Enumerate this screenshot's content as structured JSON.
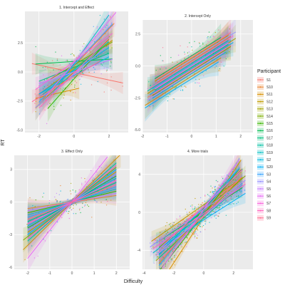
{
  "chart_data": {
    "type": "scatter",
    "x_label": "Difficulty",
    "y_label": "RT",
    "legend_title": "Participant",
    "legend_position": "right",
    "grid": true,
    "participants": [
      "S1",
      "S10",
      "S11",
      "S12",
      "S13",
      "S14",
      "S15",
      "S16",
      "S17",
      "S18",
      "S19",
      "S2",
      "S20",
      "S3",
      "S4",
      "S5",
      "S6",
      "S7",
      "S8",
      "S9"
    ],
    "colors": [
      "#F8766D",
      "#EA8331",
      "#D89000",
      "#C09B00",
      "#A3A500",
      "#7CAE00",
      "#39B600",
      "#00BB4E",
      "#00BF7D",
      "#00C1A3",
      "#00BFC4",
      "#00BAE0",
      "#00B0F6",
      "#35A2FF",
      "#9590FF",
      "#C77CFF",
      "#E76BF3",
      "#FA62DB",
      "#FF62BC",
      "#FF6C91"
    ],
    "panels": [
      {
        "title": "1. Intercept and Effect",
        "xlim": [
          -2.8,
          3.1
        ],
        "ylim": [
          -5.2,
          5.2
        ],
        "x_ticks": [
          -2,
          0,
          2
        ],
        "y_ticks": [
          -5.0,
          -2.5,
          0.0,
          2.5
        ],
        "y_tick_labels": [
          "-5.0",
          "-2.5",
          "0.0",
          "2.5"
        ],
        "series": [
          {
            "p": "S1",
            "slope": -0.32,
            "intercept": -0.05,
            "x": [
              -2.4,
              2.8
            ]
          },
          {
            "p": "S10",
            "slope": 1.6,
            "intercept": 0.5,
            "x": [
              -1.8,
              2.3
            ]
          },
          {
            "p": "S11",
            "slope": 0.35,
            "intercept": -1.5,
            "x": [
              -2.2,
              0.3
            ]
          },
          {
            "p": "S12",
            "slope": 1.1,
            "intercept": 0.3,
            "x": [
              -2.0,
              2.2
            ]
          },
          {
            "p": "S13",
            "slope": 1.4,
            "intercept": 0.0,
            "x": [
              -2.2,
              2.0
            ]
          },
          {
            "p": "S14",
            "slope": 0.9,
            "intercept": 0.6,
            "x": [
              -1.5,
              2.2
            ]
          },
          {
            "p": "S15",
            "slope": 1.7,
            "intercept": -0.6,
            "x": [
              -1.5,
              1.6
            ]
          },
          {
            "p": "S16",
            "slope": 0.1,
            "intercept": 0.9,
            "x": [
              -2.2,
              2.2
            ]
          },
          {
            "p": "S17",
            "slope": 0.6,
            "intercept": 0.4,
            "x": [
              -2.0,
              2.0
            ]
          },
          {
            "p": "S18",
            "slope": 1.2,
            "intercept": 0.2,
            "x": [
              -1.8,
              2.0
            ]
          },
          {
            "p": "S19",
            "slope": 2.1,
            "intercept": 0.7,
            "x": [
              -1.2,
              2.0
            ]
          },
          {
            "p": "S2",
            "slope": 0.8,
            "intercept": -0.3,
            "x": [
              -2.0,
              2.0
            ]
          },
          {
            "p": "S20",
            "slope": 1.0,
            "intercept": 0.1,
            "x": [
              -2.0,
              2.0
            ]
          },
          {
            "p": "S3",
            "slope": 1.6,
            "intercept": 0.6,
            "x": [
              -2.0,
              2.2
            ]
          },
          {
            "p": "S4",
            "slope": 1.3,
            "intercept": -0.2,
            "x": [
              -2.2,
              1.8
            ]
          },
          {
            "p": "S5",
            "slope": 0.5,
            "intercept": 0.0,
            "x": [
              -2.0,
              2.2
            ]
          },
          {
            "p": "S6",
            "slope": 1.8,
            "intercept": 0.8,
            "x": [
              -1.6,
              2.4
            ]
          },
          {
            "p": "S7",
            "slope": 1.1,
            "intercept": 0.9,
            "x": [
              -2.2,
              2.2
            ]
          },
          {
            "p": "S8",
            "slope": 1.5,
            "intercept": -0.1,
            "x": [
              -2.0,
              2.0
            ]
          },
          {
            "p": "S9",
            "slope": 0.9,
            "intercept": -0.4,
            "x": [
              -2.4,
              1.5
            ]
          }
        ]
      },
      {
        "title": "2. Intercept Only",
        "xlim": [
          -2.0,
          2.5
        ],
        "ylim": [
          -5.2,
          3.6
        ],
        "x_ticks": [
          -2,
          -1,
          0,
          1,
          2
        ],
        "y_ticks": [
          -5.0,
          -2.5,
          0.0,
          2.5
        ],
        "y_tick_labels": [
          "-5.0",
          "-2.5",
          "0.0",
          "2.5"
        ],
        "series": [
          {
            "p": "S1",
            "slope": 1.2,
            "intercept": -0.3,
            "x": [
              -1.8,
              1.6
            ]
          },
          {
            "p": "S10",
            "slope": 1.2,
            "intercept": 0.4,
            "x": [
              -1.4,
              1.6
            ]
          },
          {
            "p": "S11",
            "slope": 1.2,
            "intercept": -0.8,
            "x": [
              -1.9,
              1.2
            ]
          },
          {
            "p": "S12",
            "slope": 1.2,
            "intercept": 0.6,
            "x": [
              -1.5,
              1.5
            ]
          },
          {
            "p": "S13",
            "slope": 1.2,
            "intercept": 0.0,
            "x": [
              -1.8,
              1.8
            ]
          },
          {
            "p": "S14",
            "slope": 1.2,
            "intercept": -0.4,
            "x": [
              -1.6,
              1.6
            ]
          },
          {
            "p": "S15",
            "slope": 1.2,
            "intercept": 0.3,
            "x": [
              -1.7,
              1.5
            ]
          },
          {
            "p": "S16",
            "slope": 1.2,
            "intercept": 0.8,
            "x": [
              -1.5,
              1.2
            ]
          },
          {
            "p": "S17",
            "slope": 1.2,
            "intercept": -0.1,
            "x": [
              -1.5,
              1.5
            ]
          },
          {
            "p": "S18",
            "slope": 1.2,
            "intercept": 0.2,
            "x": [
              -1.8,
              1.5
            ]
          },
          {
            "p": "S19",
            "slope": 1.2,
            "intercept": -0.6,
            "x": [
              -1.6,
              1.4
            ]
          },
          {
            "p": "S2",
            "slope": 1.2,
            "intercept": -0.2,
            "x": [
              -1.7,
              1.7
            ]
          },
          {
            "p": "S20",
            "slope": 1.2,
            "intercept": -1.0,
            "x": [
              -1.9,
              1.1
            ]
          },
          {
            "p": "S3",
            "slope": 1.2,
            "intercept": 0.1,
            "x": [
              -1.6,
              1.6
            ]
          },
          {
            "p": "S4",
            "slope": 1.2,
            "intercept": 0.5,
            "x": [
              -1.4,
              1.8
            ]
          },
          {
            "p": "S5",
            "slope": 1.2,
            "intercept": -0.5,
            "x": [
              -1.8,
              1.3
            ]
          },
          {
            "p": "S6",
            "slope": 1.2,
            "intercept": 0.0,
            "x": [
              -1.5,
              1.5
            ]
          },
          {
            "p": "S7",
            "slope": 1.2,
            "intercept": 0.3,
            "x": [
              -1.7,
              1.7
            ]
          },
          {
            "p": "S8",
            "slope": 1.2,
            "intercept": -0.3,
            "x": [
              -1.6,
              1.4
            ]
          },
          {
            "p": "S9",
            "slope": 1.2,
            "intercept": 0.7,
            "x": [
              -1.5,
              1.6
            ]
          }
        ]
      },
      {
        "title": "3. Effect Only",
        "xlim": [
          -2.6,
          2.6
        ],
        "ylim": [
          -6.2,
          4.3
        ],
        "x_ticks": [
          -2,
          -1,
          0,
          1,
          2
        ],
        "y_ticks": [
          -6,
          -3,
          0,
          3
        ],
        "y_tick_labels": [
          "-6",
          "-3",
          "0",
          "3"
        ],
        "series": [
          {
            "p": "S1",
            "slope": 1.0,
            "intercept": 0.0,
            "x": [
              -2.0,
              2.0
            ]
          },
          {
            "p": "S10",
            "slope": 0.3,
            "intercept": 0.0,
            "x": [
              -2.0,
              2.0
            ]
          },
          {
            "p": "S11",
            "slope": 2.0,
            "intercept": 0.0,
            "x": [
              -2.2,
              2.2
            ]
          },
          {
            "p": "S12",
            "slope": 1.4,
            "intercept": 0.0,
            "x": [
              -2.0,
              2.0
            ]
          },
          {
            "p": "S13",
            "slope": 0.8,
            "intercept": 0.0,
            "x": [
              -2.0,
              1.8
            ]
          },
          {
            "p": "S14",
            "slope": 1.6,
            "intercept": 0.0,
            "x": [
              -2.2,
              2.0
            ]
          },
          {
            "p": "S15",
            "slope": 0.5,
            "intercept": 0.0,
            "x": [
              -2.0,
              2.0
            ]
          },
          {
            "p": "S16",
            "slope": 1.2,
            "intercept": 0.0,
            "x": [
              -2.0,
              2.0
            ]
          },
          {
            "p": "S17",
            "slope": 0.9,
            "intercept": 0.0,
            "x": [
              -2.0,
              2.0
            ]
          },
          {
            "p": "S18",
            "slope": 1.8,
            "intercept": 0.0,
            "x": [
              -2.0,
              2.0
            ]
          },
          {
            "p": "S19",
            "slope": 0.6,
            "intercept": 0.0,
            "x": [
              -2.0,
              2.0
            ]
          },
          {
            "p": "S2",
            "slope": 1.1,
            "intercept": 0.0,
            "x": [
              -2.0,
              2.0
            ]
          },
          {
            "p": "S20",
            "slope": 1.5,
            "intercept": 0.0,
            "x": [
              -2.0,
              2.0
            ]
          },
          {
            "p": "S3",
            "slope": 0.7,
            "intercept": 0.0,
            "x": [
              -2.0,
              2.0
            ]
          },
          {
            "p": "S4",
            "slope": 1.3,
            "intercept": 0.0,
            "x": [
              -2.0,
              2.0
            ]
          },
          {
            "p": "S5",
            "slope": 0.4,
            "intercept": 0.0,
            "x": [
              -2.0,
              2.0
            ]
          },
          {
            "p": "S6",
            "slope": 2.6,
            "intercept": 0.0,
            "x": [
              -2.0,
              1.6
            ]
          },
          {
            "p": "S7",
            "slope": 1.0,
            "intercept": 0.0,
            "x": [
              -2.0,
              2.0
            ]
          },
          {
            "p": "S8",
            "slope": 1.7,
            "intercept": 0.0,
            "x": [
              -2.0,
              2.0
            ]
          },
          {
            "p": "S9",
            "slope": 0.8,
            "intercept": 0.0,
            "x": [
              -2.0,
              2.0
            ]
          }
        ]
      },
      {
        "title": "4. More trials",
        "xlim": [
          -4.1,
          3.3
        ],
        "ylim": [
          -6.0,
          6.0
        ],
        "x_ticks": [
          -4,
          -2,
          0,
          2
        ],
        "y_ticks": [
          -4,
          0,
          4
        ],
        "y_tick_labels": [
          "-4",
          "0",
          "4"
        ],
        "series": [
          {
            "p": "S1",
            "slope": 1.2,
            "intercept": 0.5,
            "x": [
              -3.0,
              2.6
            ]
          },
          {
            "p": "S10",
            "slope": 1.8,
            "intercept": 0.0,
            "x": [
              -3.0,
              2.5
            ]
          },
          {
            "p": "S11",
            "slope": 2.4,
            "intercept": -0.5,
            "x": [
              -2.8,
              2.5
            ]
          },
          {
            "p": "S12",
            "slope": 1.1,
            "intercept": 0.8,
            "x": [
              -3.5,
              2.6
            ]
          },
          {
            "p": "S13",
            "slope": 1.5,
            "intercept": -0.3,
            "x": [
              -3.2,
              2.6
            ]
          },
          {
            "p": "S14",
            "slope": 1.3,
            "intercept": 0.2,
            "x": [
              -3.0,
              2.8
            ]
          },
          {
            "p": "S15",
            "slope": 2.0,
            "intercept": -0.2,
            "x": [
              -3.0,
              2.4
            ]
          },
          {
            "p": "S16",
            "slope": 1.0,
            "intercept": 0.0,
            "x": [
              -3.2,
              2.6
            ]
          },
          {
            "p": "S17",
            "slope": 1.6,
            "intercept": 0.4,
            "x": [
              -3.0,
              2.6
            ]
          },
          {
            "p": "S18",
            "slope": 1.4,
            "intercept": -0.6,
            "x": [
              -3.0,
              2.6
            ]
          },
          {
            "p": "S19",
            "slope": 1.2,
            "intercept": -0.2,
            "x": [
              -3.4,
              2.6
            ]
          },
          {
            "p": "S2",
            "slope": 1.7,
            "intercept": 0.6,
            "x": [
              -3.0,
              2.4
            ]
          },
          {
            "p": "S20",
            "slope": 1.0,
            "intercept": -0.8,
            "x": [
              -3.0,
              2.8
            ]
          },
          {
            "p": "S3",
            "slope": 1.9,
            "intercept": 0.1,
            "x": [
              -3.0,
              2.4
            ]
          },
          {
            "p": "S4",
            "slope": 1.1,
            "intercept": 0.3,
            "x": [
              -3.6,
              2.8
            ]
          },
          {
            "p": "S5",
            "slope": 1.3,
            "intercept": -0.4,
            "x": [
              -3.2,
              2.6
            ]
          },
          {
            "p": "S6",
            "slope": 2.2,
            "intercept": 0.3,
            "x": [
              -2.8,
              2.4
            ]
          },
          {
            "p": "S7",
            "slope": 1.5,
            "intercept": 0.6,
            "x": [
              -3.0,
              2.6
            ]
          },
          {
            "p": "S8",
            "slope": 1.1,
            "intercept": -0.1,
            "x": [
              -3.4,
              2.8
            ]
          },
          {
            "p": "S9",
            "slope": 1.6,
            "intercept": -0.3,
            "x": [
              -3.0,
              2.5
            ]
          }
        ]
      }
    ]
  }
}
